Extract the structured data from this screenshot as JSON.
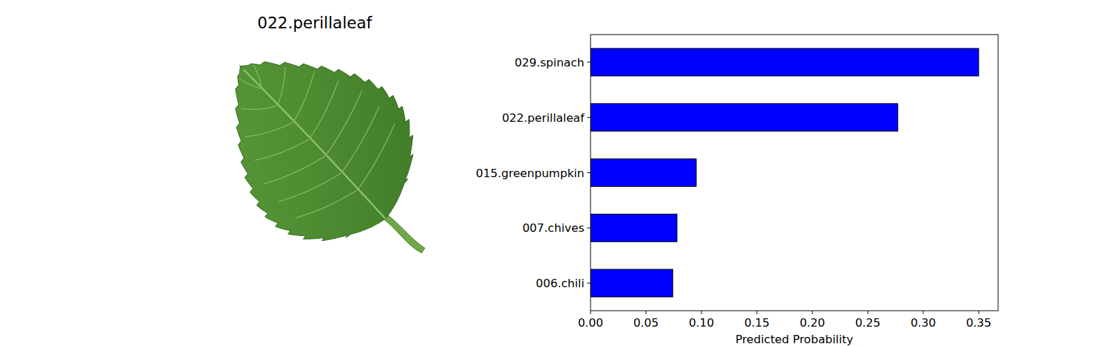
{
  "image": {
    "title": "022.perillaleaf"
  },
  "chart_data": {
    "type": "bar",
    "orientation": "horizontal",
    "categories": [
      "029.spinach",
      "022.perillaleaf",
      "015.greenpumpkin",
      "007.chives",
      "006.chili"
    ],
    "values": [
      0.35,
      0.277,
      0.0953,
      0.078,
      0.0742
    ],
    "color": "#0000ff",
    "xlabel": "Predicted Probability",
    "xlim": [
      0,
      0.3675
    ],
    "xticks": [
      {
        "value": 0,
        "label": "0.00"
      },
      {
        "value": 0.05,
        "label": "0.05"
      },
      {
        "value": 0.1,
        "label": "0.10"
      },
      {
        "value": 0.15,
        "label": "0.15"
      },
      {
        "value": 0.2,
        "label": "0.20"
      },
      {
        "value": 0.25,
        "label": "0.25"
      },
      {
        "value": 0.3,
        "label": "0.30"
      },
      {
        "value": 0.35,
        "label": "0.35"
      }
    ],
    "grid": false
  }
}
